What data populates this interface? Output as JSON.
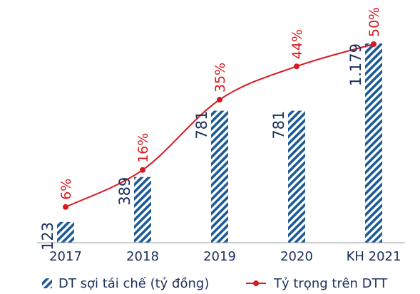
{
  "chart_data": {
    "type": "bar",
    "categories": [
      "2017",
      "2018",
      "2019",
      "2020",
      "KH 2021"
    ],
    "series": [
      {
        "name": "DT sợi tái chế (tỷ đồng)",
        "type": "bar",
        "values": [
          123,
          389,
          781,
          781,
          1179
        ],
        "value_labels": [
          "123",
          "389",
          "781",
          "781",
          "1.179"
        ],
        "color": "#1b5a96",
        "pattern": "diagonal-stripes"
      },
      {
        "name": "Tỷ trọng trên DTT",
        "type": "line",
        "values": [
          6,
          16,
          35,
          44,
          50
        ],
        "value_labels": [
          "6%",
          "16%",
          "35%",
          "44%",
          "50%"
        ],
        "color": "#d71920",
        "marker": "circle",
        "smooth": true
      }
    ],
    "title": "",
    "xlabel": "",
    "ylabel": "",
    "legend_position": "bottom",
    "grid": false
  }
}
